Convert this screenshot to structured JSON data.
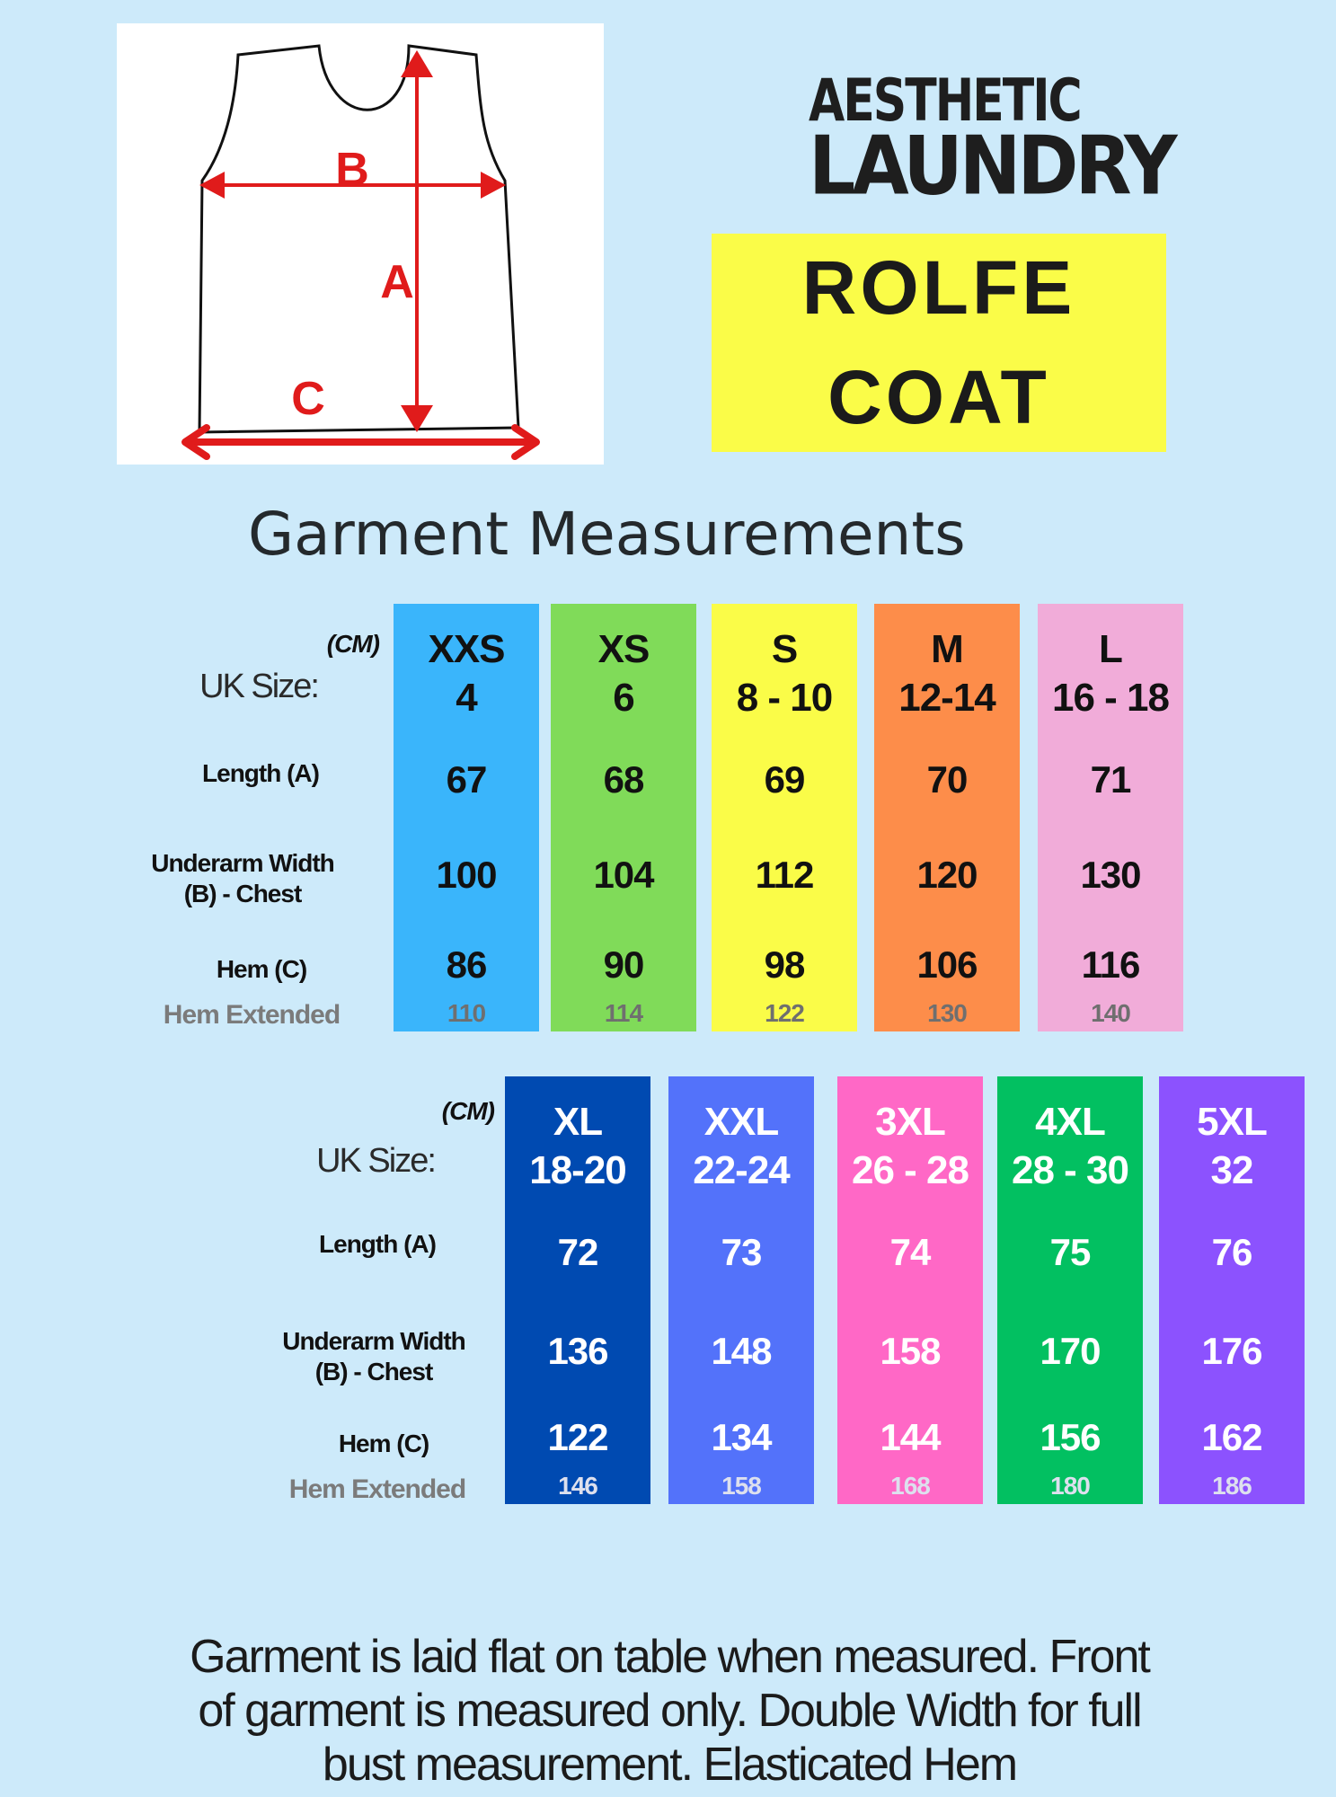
{
  "diagram": {
    "label_a": "A",
    "label_b": "B",
    "label_c": "C",
    "accent_color": "#e01b1b"
  },
  "brand": {
    "line1": "AESTHETIC",
    "line2": "LAUNDRY"
  },
  "product": {
    "line1": "ROLFE",
    "line2": "COAT",
    "box_color": "#fafc48"
  },
  "heading": "Garment Measurements",
  "row_labels": {
    "unit": "(CM)",
    "uk_size": "UK Size:",
    "length": "Length (A)",
    "underarm_1": "Underarm Width",
    "underarm_2": "(B) - Chest",
    "hem": "Hem (C)",
    "hem_extended": "Hem Extended"
  },
  "table1": {
    "columns": [
      {
        "size": "XXS",
        "uk": "4",
        "length": "67",
        "underarm": "100",
        "hem": "86",
        "hem_ext": "110",
        "color": "#3ab5fb"
      },
      {
        "size": "XS",
        "uk": "6",
        "length": "68",
        "underarm": "104",
        "hem": "90",
        "hem_ext": "114",
        "color": "#80db59"
      },
      {
        "size": "S",
        "uk": "8 - 10",
        "length": "69",
        "underarm": "112",
        "hem": "98",
        "hem_ext": "122",
        "color": "#fafc48"
      },
      {
        "size": "M",
        "uk": "12-14",
        "length": "70",
        "underarm": "120",
        "hem": "106",
        "hem_ext": "130",
        "color": "#fd8d4a"
      },
      {
        "size": "L",
        "uk": "16 - 18",
        "length": "71",
        "underarm": "130",
        "hem": "116",
        "hem_ext": "140",
        "color": "#f1acd9"
      }
    ]
  },
  "table2": {
    "columns": [
      {
        "size": "XL",
        "uk": "18-20",
        "length": "72",
        "underarm": "136",
        "hem": "122",
        "hem_ext": "146",
        "color": "#004ab1"
      },
      {
        "size": "XXL",
        "uk": "22-24",
        "length": "73",
        "underarm": "148",
        "hem": "134",
        "hem_ext": "158",
        "color": "#5372fa"
      },
      {
        "size": "3XL",
        "uk": "26 - 28",
        "length": "74",
        "underarm": "158",
        "hem": "144",
        "hem_ext": "168",
        "color": "#ff68c6"
      },
      {
        "size": "4XL",
        "uk": "28 - 30",
        "length": "75",
        "underarm": "170",
        "hem": "156",
        "hem_ext": "180",
        "color": "#02c061"
      },
      {
        "size": "5XL",
        "uk": "32",
        "length": "76",
        "underarm": "176",
        "hem": "162",
        "hem_ext": "186",
        "color": "#8c52fe"
      }
    ]
  },
  "note": {
    "line1": "Garment is laid flat on table when measured. Front",
    "line2": "of garment is measured only. Double Width for full",
    "line3": "bust measurement. Elasticated Hem"
  }
}
